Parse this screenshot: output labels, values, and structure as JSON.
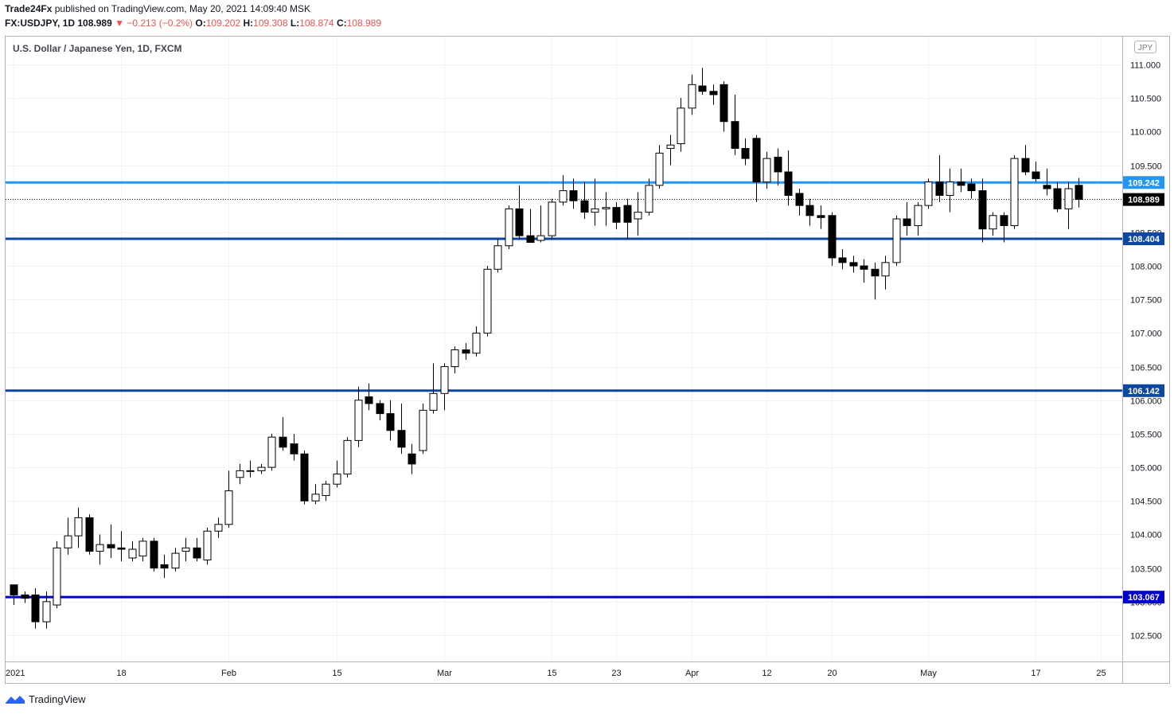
{
  "header": {
    "publisher": "Trade24Fx",
    "published_text": "published on TradingView.com, May 20, 2021 14:09:40 MSK",
    "symbol": "FX:USDJPY, 1D",
    "last": "108.989",
    "change": "▼ −0.213 (−0.2%)",
    "o_label": "O:",
    "o_value": "109.202",
    "h_label": "H:",
    "h_value": "109.308",
    "l_label": "L:",
    "l_value": "108.874",
    "c_label": "C:",
    "c_value": "108.989"
  },
  "footer": {
    "brand": "TradingView"
  },
  "chart_data": {
    "type": "candlestick",
    "title": "U.S. Dollar / Japanese Yen, 1D, FXCM",
    "currency": "JPY",
    "ylim": [
      102.1,
      111.3
    ],
    "y_ticks": [
      102.5,
      103.0,
      103.5,
      104.0,
      104.5,
      105.0,
      105.5,
      106.0,
      106.5,
      107.0,
      107.5,
      108.0,
      108.5,
      109.0,
      109.5,
      110.0,
      110.5,
      111.0
    ],
    "x_labels": [
      {
        "label": "2021",
        "index": 0
      },
      {
        "label": "18",
        "index": 10
      },
      {
        "label": "Feb",
        "index": 20
      },
      {
        "label": "15",
        "index": 30
      },
      {
        "label": "Mar",
        "index": 40
      },
      {
        "label": "15",
        "index": 50
      },
      {
        "label": "23",
        "index": 56
      },
      {
        "label": "Apr",
        "index": 63
      },
      {
        "label": "12",
        "index": 70
      },
      {
        "label": "20",
        "index": 76
      },
      {
        "label": "May",
        "index": 85
      },
      {
        "label": "17",
        "index": 95
      },
      {
        "label": "25",
        "index": 101
      }
    ],
    "grid": true,
    "horizontal_lines": [
      {
        "value": 109.242,
        "label": "109.242",
        "color": "#2196f3",
        "width": 3
      },
      {
        "value": 108.404,
        "label": "108.404",
        "color": "#0d47a1",
        "width": 3
      },
      {
        "value": 106.142,
        "label": "106.142",
        "color": "#0d47a1",
        "width": 3
      },
      {
        "value": 103.067,
        "label": "103.067",
        "color": "#0000cc",
        "width": 3
      }
    ],
    "last_price": {
      "value": 108.989,
      "label": "108.989",
      "color": "#000000"
    },
    "candles": [
      [
        103.25,
        103.25,
        102.95,
        103.1
      ],
      [
        103.1,
        103.15,
        102.98,
        103.05
      ],
      [
        103.1,
        103.2,
        102.6,
        102.7
      ],
      [
        102.7,
        103.15,
        102.6,
        103.0
      ],
      [
        102.95,
        103.9,
        102.9,
        103.8
      ],
      [
        103.8,
        104.25,
        103.7,
        103.98
      ],
      [
        103.98,
        104.4,
        103.8,
        104.25
      ],
      [
        104.25,
        104.3,
        103.7,
        103.75
      ],
      [
        103.75,
        104.0,
        103.55,
        103.85
      ],
      [
        103.85,
        104.15,
        103.65,
        103.8
      ],
      [
        103.8,
        104.05,
        103.6,
        103.78
      ],
      [
        103.65,
        103.9,
        103.6,
        103.78
      ],
      [
        103.68,
        103.95,
        103.6,
        103.9
      ],
      [
        103.9,
        103.95,
        103.45,
        103.5
      ],
      [
        103.55,
        103.7,
        103.35,
        103.5
      ],
      [
        103.5,
        103.8,
        103.45,
        103.72
      ],
      [
        103.75,
        103.95,
        103.6,
        103.8
      ],
      [
        103.8,
        103.95,
        103.6,
        103.65
      ],
      [
        103.62,
        104.1,
        103.55,
        104.05
      ],
      [
        104.05,
        104.25,
        103.95,
        104.15
      ],
      [
        104.15,
        104.95,
        104.1,
        104.65
      ],
      [
        104.85,
        105.05,
        104.75,
        104.95
      ],
      [
        104.95,
        105.1,
        104.85,
        104.95
      ],
      [
        104.95,
        105.05,
        104.9,
        105.0
      ],
      [
        105.0,
        105.5,
        104.95,
        105.45
      ],
      [
        105.45,
        105.75,
        105.25,
        105.3
      ],
      [
        105.35,
        105.5,
        105.1,
        105.2
      ],
      [
        105.2,
        105.25,
        104.45,
        104.5
      ],
      [
        104.5,
        104.75,
        104.45,
        104.6
      ],
      [
        104.58,
        104.8,
        104.5,
        104.75
      ],
      [
        104.75,
        105.1,
        104.7,
        104.9
      ],
      [
        104.9,
        105.45,
        104.85,
        105.4
      ],
      [
        105.4,
        106.2,
        105.3,
        106.0
      ],
      [
        106.05,
        106.25,
        105.85,
        105.95
      ],
      [
        105.95,
        106.0,
        105.7,
        105.8
      ],
      [
        105.8,
        106.0,
        105.4,
        105.55
      ],
      [
        105.55,
        105.95,
        105.2,
        105.3
      ],
      [
        105.2,
        105.35,
        104.9,
        105.05
      ],
      [
        105.25,
        105.95,
        105.2,
        105.85
      ],
      [
        105.85,
        106.55,
        105.8,
        106.1
      ],
      [
        106.1,
        106.55,
        105.85,
        106.5
      ],
      [
        106.5,
        106.8,
        106.4,
        106.75
      ],
      [
        106.75,
        106.85,
        106.6,
        106.7
      ],
      [
        106.7,
        107.1,
        106.65,
        107.0
      ],
      [
        107.0,
        108.0,
        106.95,
        107.95
      ],
      [
        107.95,
        108.4,
        107.9,
        108.3
      ],
      [
        108.3,
        108.9,
        108.25,
        108.85
      ],
      [
        108.85,
        109.2,
        108.4,
        108.45
      ],
      [
        108.45,
        108.85,
        108.35,
        108.35
      ],
      [
        108.38,
        108.9,
        108.35,
        108.45
      ],
      [
        108.45,
        109.0,
        108.4,
        108.95
      ],
      [
        108.95,
        109.35,
        108.9,
        109.12
      ],
      [
        109.12,
        109.3,
        108.85,
        108.97
      ],
      [
        108.97,
        109.25,
        108.7,
        108.8
      ],
      [
        108.8,
        109.3,
        108.6,
        108.85
      ],
      [
        108.85,
        109.1,
        108.6,
        108.87
      ],
      [
        108.87,
        108.95,
        108.55,
        108.65
      ],
      [
        108.9,
        109.0,
        108.4,
        108.65
      ],
      [
        108.7,
        109.1,
        108.45,
        108.8
      ],
      [
        108.8,
        109.3,
        108.75,
        109.2
      ],
      [
        109.2,
        109.8,
        109.15,
        109.68
      ],
      [
        109.75,
        109.95,
        109.5,
        109.8
      ],
      [
        109.82,
        110.5,
        109.7,
        110.35
      ],
      [
        110.35,
        110.85,
        110.25,
        110.7
      ],
      [
        110.68,
        110.95,
        110.55,
        110.6
      ],
      [
        110.6,
        110.7,
        110.4,
        110.55
      ],
      [
        110.7,
        110.75,
        110.0,
        110.15
      ],
      [
        110.15,
        110.55,
        109.65,
        109.75
      ],
      [
        109.75,
        109.9,
        109.5,
        109.6
      ],
      [
        109.9,
        109.95,
        108.95,
        109.25
      ],
      [
        109.25,
        109.7,
        109.15,
        109.6
      ],
      [
        109.62,
        109.75,
        109.2,
        109.4
      ],
      [
        109.4,
        109.72,
        108.9,
        109.05
      ],
      [
        109.08,
        109.15,
        108.75,
        108.9
      ],
      [
        108.9,
        109.0,
        108.6,
        108.75
      ],
      [
        108.75,
        108.9,
        108.55,
        108.72
      ],
      [
        108.75,
        108.8,
        108.0,
        108.12
      ],
      [
        108.12,
        108.25,
        107.95,
        108.05
      ],
      [
        108.05,
        108.15,
        107.9,
        108.0
      ],
      [
        108.0,
        108.1,
        107.75,
        107.95
      ],
      [
        107.95,
        108.05,
        107.5,
        107.85
      ],
      [
        107.85,
        108.15,
        107.65,
        108.05
      ],
      [
        108.05,
        108.75,
        108.0,
        108.7
      ],
      [
        108.7,
        108.95,
        108.45,
        108.6
      ],
      [
        108.6,
        108.95,
        108.45,
        108.9
      ],
      [
        108.9,
        109.3,
        108.85,
        109.25
      ],
      [
        109.25,
        109.65,
        108.95,
        109.05
      ],
      [
        109.05,
        109.45,
        108.8,
        109.25
      ],
      [
        109.25,
        109.45,
        109.1,
        109.2
      ],
      [
        109.22,
        109.3,
        109.0,
        109.12
      ],
      [
        109.12,
        109.3,
        108.35,
        108.55
      ],
      [
        108.55,
        108.8,
        108.45,
        108.75
      ],
      [
        108.75,
        108.8,
        108.35,
        108.6
      ],
      [
        108.6,
        109.65,
        108.55,
        109.6
      ],
      [
        109.6,
        109.8,
        109.35,
        109.4
      ],
      [
        109.4,
        109.55,
        109.25,
        109.3
      ],
      [
        109.2,
        109.45,
        109.05,
        109.15
      ],
      [
        109.15,
        109.25,
        108.8,
        108.85
      ],
      [
        108.85,
        109.25,
        108.55,
        109.15
      ],
      [
        109.2,
        109.31,
        108.87,
        108.99
      ]
    ]
  }
}
